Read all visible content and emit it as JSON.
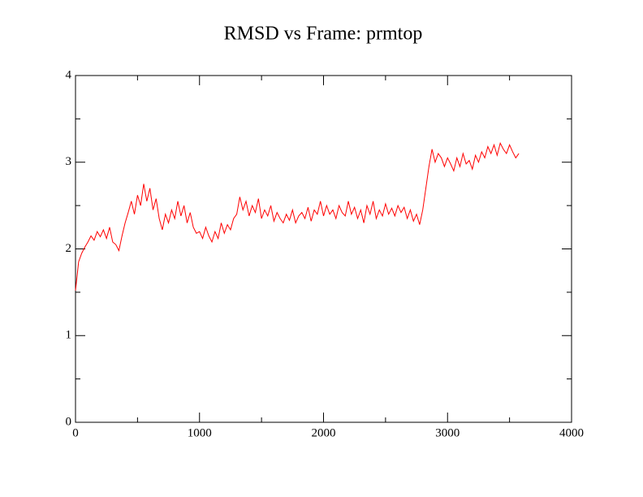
{
  "chart_data": {
    "type": "line",
    "title": "RMSD vs Frame: prmtop",
    "x": [
      0,
      25,
      50,
      75,
      100,
      125,
      150,
      175,
      200,
      225,
      250,
      275,
      300,
      325,
      350,
      375,
      400,
      425,
      450,
      475,
      500,
      525,
      550,
      575,
      600,
      625,
      650,
      675,
      700,
      725,
      750,
      775,
      800,
      825,
      850,
      875,
      900,
      925,
      950,
      975,
      1000,
      1025,
      1050,
      1075,
      1100,
      1125,
      1150,
      1175,
      1200,
      1225,
      1250,
      1275,
      1300,
      1325,
      1350,
      1375,
      1400,
      1425,
      1450,
      1475,
      1500,
      1525,
      1550,
      1575,
      1600,
      1625,
      1650,
      1675,
      1700,
      1725,
      1750,
      1775,
      1800,
      1825,
      1850,
      1875,
      1900,
      1925,
      1950,
      1975,
      2000,
      2025,
      2050,
      2075,
      2100,
      2125,
      2150,
      2175,
      2200,
      2225,
      2250,
      2275,
      2300,
      2325,
      2350,
      2375,
      2400,
      2425,
      2450,
      2475,
      2500,
      2525,
      2550,
      2575,
      2600,
      2625,
      2650,
      2675,
      2700,
      2725,
      2750,
      2775,
      2800,
      2825,
      2850,
      2875,
      2900,
      2925,
      2950,
      2975,
      3000,
      3025,
      3050,
      3075,
      3100,
      3125,
      3150,
      3175,
      3200,
      3225,
      3250,
      3275,
      3300,
      3325,
      3350,
      3375,
      3400,
      3425,
      3450,
      3475,
      3500,
      3525,
      3550,
      3575
    ],
    "series": [
      {
        "color": "#ff0000",
        "values": [
          1.52,
          1.85,
          1.95,
          2.02,
          2.08,
          2.15,
          2.1,
          2.2,
          2.14,
          2.22,
          2.12,
          2.25,
          2.08,
          2.05,
          1.98,
          2.15,
          2.3,
          2.42,
          2.55,
          2.4,
          2.62,
          2.5,
          2.75,
          2.55,
          2.7,
          2.45,
          2.58,
          2.35,
          2.22,
          2.4,
          2.3,
          2.45,
          2.35,
          2.55,
          2.38,
          2.5,
          2.3,
          2.42,
          2.25,
          2.18,
          2.2,
          2.12,
          2.25,
          2.15,
          2.08,
          2.2,
          2.12,
          2.3,
          2.18,
          2.28,
          2.22,
          2.35,
          2.4,
          2.6,
          2.45,
          2.55,
          2.38,
          2.5,
          2.42,
          2.58,
          2.35,
          2.45,
          2.38,
          2.5,
          2.32,
          2.42,
          2.35,
          2.3,
          2.4,
          2.33,
          2.45,
          2.3,
          2.38,
          2.42,
          2.35,
          2.48,
          2.32,
          2.45,
          2.4,
          2.55,
          2.38,
          2.5,
          2.4,
          2.45,
          2.35,
          2.5,
          2.42,
          2.38,
          2.55,
          2.4,
          2.48,
          2.35,
          2.45,
          2.3,
          2.5,
          2.4,
          2.55,
          2.35,
          2.45,
          2.38,
          2.52,
          2.4,
          2.47,
          2.38,
          2.5,
          2.42,
          2.48,
          2.35,
          2.45,
          2.32,
          2.4,
          2.28,
          2.45,
          2.7,
          2.95,
          3.15,
          3.0,
          3.1,
          3.05,
          2.95,
          3.05,
          2.98,
          2.9,
          3.05,
          2.95,
          3.1,
          2.98,
          3.02,
          2.92,
          3.08,
          3.0,
          3.12,
          3.05,
          3.18,
          3.1,
          3.2,
          3.08,
          3.22,
          3.15,
          3.1,
          3.2,
          3.12,
          3.05,
          3.1
        ]
      }
    ],
    "xlim": [
      0,
      4000
    ],
    "xticks": [
      0,
      1000,
      2000,
      3000,
      4000
    ],
    "xminorticks": [
      500,
      1500,
      2500,
      3500
    ],
    "ylim": [
      0,
      4
    ],
    "yticks": [
      0,
      1,
      2,
      3,
      4
    ],
    "yminorticks": [
      0.5,
      1.5,
      2.5,
      3.5
    ]
  }
}
